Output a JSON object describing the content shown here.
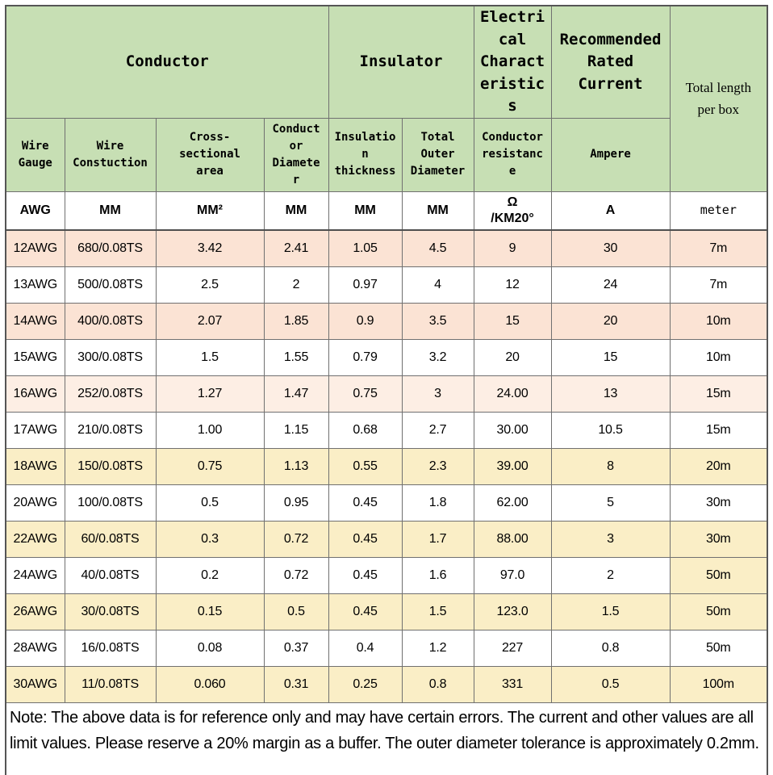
{
  "colors": {
    "header_green": "#c7dfb4",
    "band_peach": "#fbe3d4",
    "band_peach_light": "#fdeee4",
    "band_cream": "#faeec6",
    "band_white": "#ffffff"
  },
  "header": {
    "group_conductor": "Conductor",
    "group_insulator": "Insulator",
    "group_electrical": "Electri\ncal\nCharact\neristic\ns",
    "group_rated_current": "Recommended\nRated\nCurrent",
    "group_total_length": "Total length\nper box",
    "sub_wire_gauge": "Wire\nGauge",
    "sub_wire_constuction": "Wire\nConstuction",
    "sub_cross_sectional": "Cross-\nsectional\narea",
    "sub_conductor_diameter": "Conduct\nor\nDiamete\nr",
    "sub_insulation_thickness": "Insulatio\nn\nthickness",
    "sub_total_outer_diameter": "Total\nOuter\nDiameter",
    "sub_conductor_resistance": "Conductor\nresistanc\ne",
    "sub_ampere": "Ampere"
  },
  "units": {
    "wire_gauge": "AWG",
    "wire_constuction": "MM",
    "cross_sectional": "MM²",
    "conductor_diameter": "MM",
    "insulation_thickness": "MM",
    "total_outer_diameter": "MM",
    "conductor_resistance": "Ω\n/KM20°",
    "ampere": "A",
    "total_length": "meter"
  },
  "rows": [
    {
      "cells": [
        "12AWG",
        "680/0.08TS",
        "3.42",
        "2.41",
        "1.05",
        "4.5",
        "9",
        "30",
        "7m"
      ],
      "band": "peach"
    },
    {
      "cells": [
        "13AWG",
        "500/0.08TS",
        "2.5",
        "2",
        "0.97",
        "4",
        "12",
        "24",
        "7m"
      ],
      "band": "white"
    },
    {
      "cells": [
        "14AWG",
        "400/0.08TS",
        "2.07",
        "1.85",
        "0.9",
        "3.5",
        "15",
        "20",
        "10m"
      ],
      "band": "peach"
    },
    {
      "cells": [
        "15AWG",
        "300/0.08TS",
        "1.5",
        "1.55",
        "0.79",
        "3.2",
        "20",
        "15",
        "10m"
      ],
      "band": "white"
    },
    {
      "cells": [
        "16AWG",
        "252/0.08TS",
        "1.27",
        "1.47",
        "0.75",
        "3",
        "24.00",
        "13",
        "15m"
      ],
      "band": "peach_light"
    },
    {
      "cells": [
        "17AWG",
        "210/0.08TS",
        "1.00",
        "1.15",
        "0.68",
        "2.7",
        "30.00",
        "10.5",
        "15m"
      ],
      "band": "white"
    },
    {
      "cells": [
        "18AWG",
        "150/0.08TS",
        "0.75",
        "1.13",
        "0.55",
        "2.3",
        "39.00",
        "8",
        "20m"
      ],
      "band": "cream"
    },
    {
      "cells": [
        "20AWG",
        "100/0.08TS",
        "0.5",
        "0.95",
        "0.45",
        "1.8",
        "62.00",
        "5",
        "30m"
      ],
      "band": "white"
    },
    {
      "cells": [
        "22AWG",
        "60/0.08TS",
        "0.3",
        "0.72",
        "0.45",
        "1.7",
        "88.00",
        "3",
        "30m"
      ],
      "band": "cream"
    },
    {
      "cells": [
        "24AWG",
        "40/0.08TS",
        "0.2",
        "0.72",
        "0.45",
        "1.6",
        "97.0",
        "2",
        "50m"
      ],
      "band": "white",
      "last_cell_band": "cream"
    },
    {
      "cells": [
        "26AWG",
        "30/0.08TS",
        "0.15",
        "0.5",
        "0.45",
        "1.5",
        "123.0",
        "1.5",
        "50m"
      ],
      "band": "cream"
    },
    {
      "cells": [
        "28AWG",
        "16/0.08TS",
        "0.08",
        "0.37",
        "0.4",
        "1.2",
        "227",
        "0.8",
        "50m"
      ],
      "band": "white"
    },
    {
      "cells": [
        "30AWG",
        "11/0.08TS",
        "0.060",
        "0.31",
        "0.25",
        "0.8",
        "331",
        "0.5",
        "100m"
      ],
      "band": "cream"
    }
  ],
  "note": "Note: The above data is for reference only and may have certain errors. The current and other values are all limit values. Please reserve a 20% margin as a buffer. The outer diameter tolerance is approximately 0.2mm."
}
